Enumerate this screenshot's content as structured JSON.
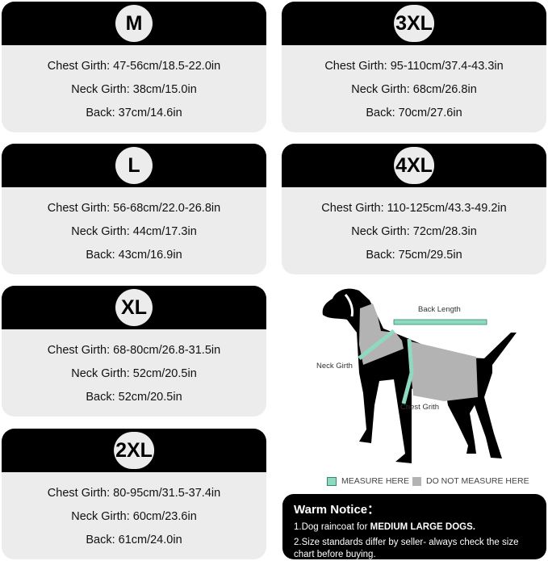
{
  "sizes": [
    {
      "size": "M",
      "chest": "Chest Girth: 47-56cm/18.5-22.0in",
      "neck": "Neck Girth: 38cm/15.0in",
      "back": "Back: 37cm/14.6in"
    },
    {
      "size": "L",
      "chest": "Chest Girth: 56-68cm/22.0-26.8in",
      "neck": "Neck Girth: 44cm/17.3in",
      "back": "Back: 43cm/16.9in"
    },
    {
      "size": "XL",
      "chest": "Chest Girth: 68-80cm/26.8-31.5in",
      "neck": "Neck Girth: 52cm/20.5in",
      "back": "Back: 52cm/20.5in"
    },
    {
      "size": "2XL",
      "chest": "Chest Girth: 80-95cm/31.5-37.4in",
      "neck": "Neck Girth: 60cm/23.6in",
      "back": "Back: 61cm/24.0in"
    },
    {
      "size": "3XL",
      "chest": "Chest Girth: 95-110cm/37.4-43.3in",
      "neck": "Neck Girth: 68cm/26.8in",
      "back": "Back: 70cm/27.6in"
    },
    {
      "size": "4XL",
      "chest": "Chest Girth: 110-125cm/43.3-49.2in",
      "neck": "Neck Girth: 72cm/28.3in",
      "back": "Back: 75cm/29.5in"
    }
  ],
  "diagram": {
    "back_length": "Back Length",
    "neck_girth": "Neck Girth",
    "chest_girth": "Chest Grith"
  },
  "legend": {
    "measure": "MEASURE HERE",
    "do_not_measure": "DO NOT MEASURE HERE",
    "measure_color": "#8fd9bf",
    "no_measure_color": "#b3b3b3"
  },
  "notice": {
    "title": "Warm Notice：",
    "line1_prefix": "1.Dog raincoat for ",
    "line1_bold": "MEDIUM LARGE DOGS.",
    "line2": "2.Size standards differ by seller- always check the size chart before buying."
  }
}
